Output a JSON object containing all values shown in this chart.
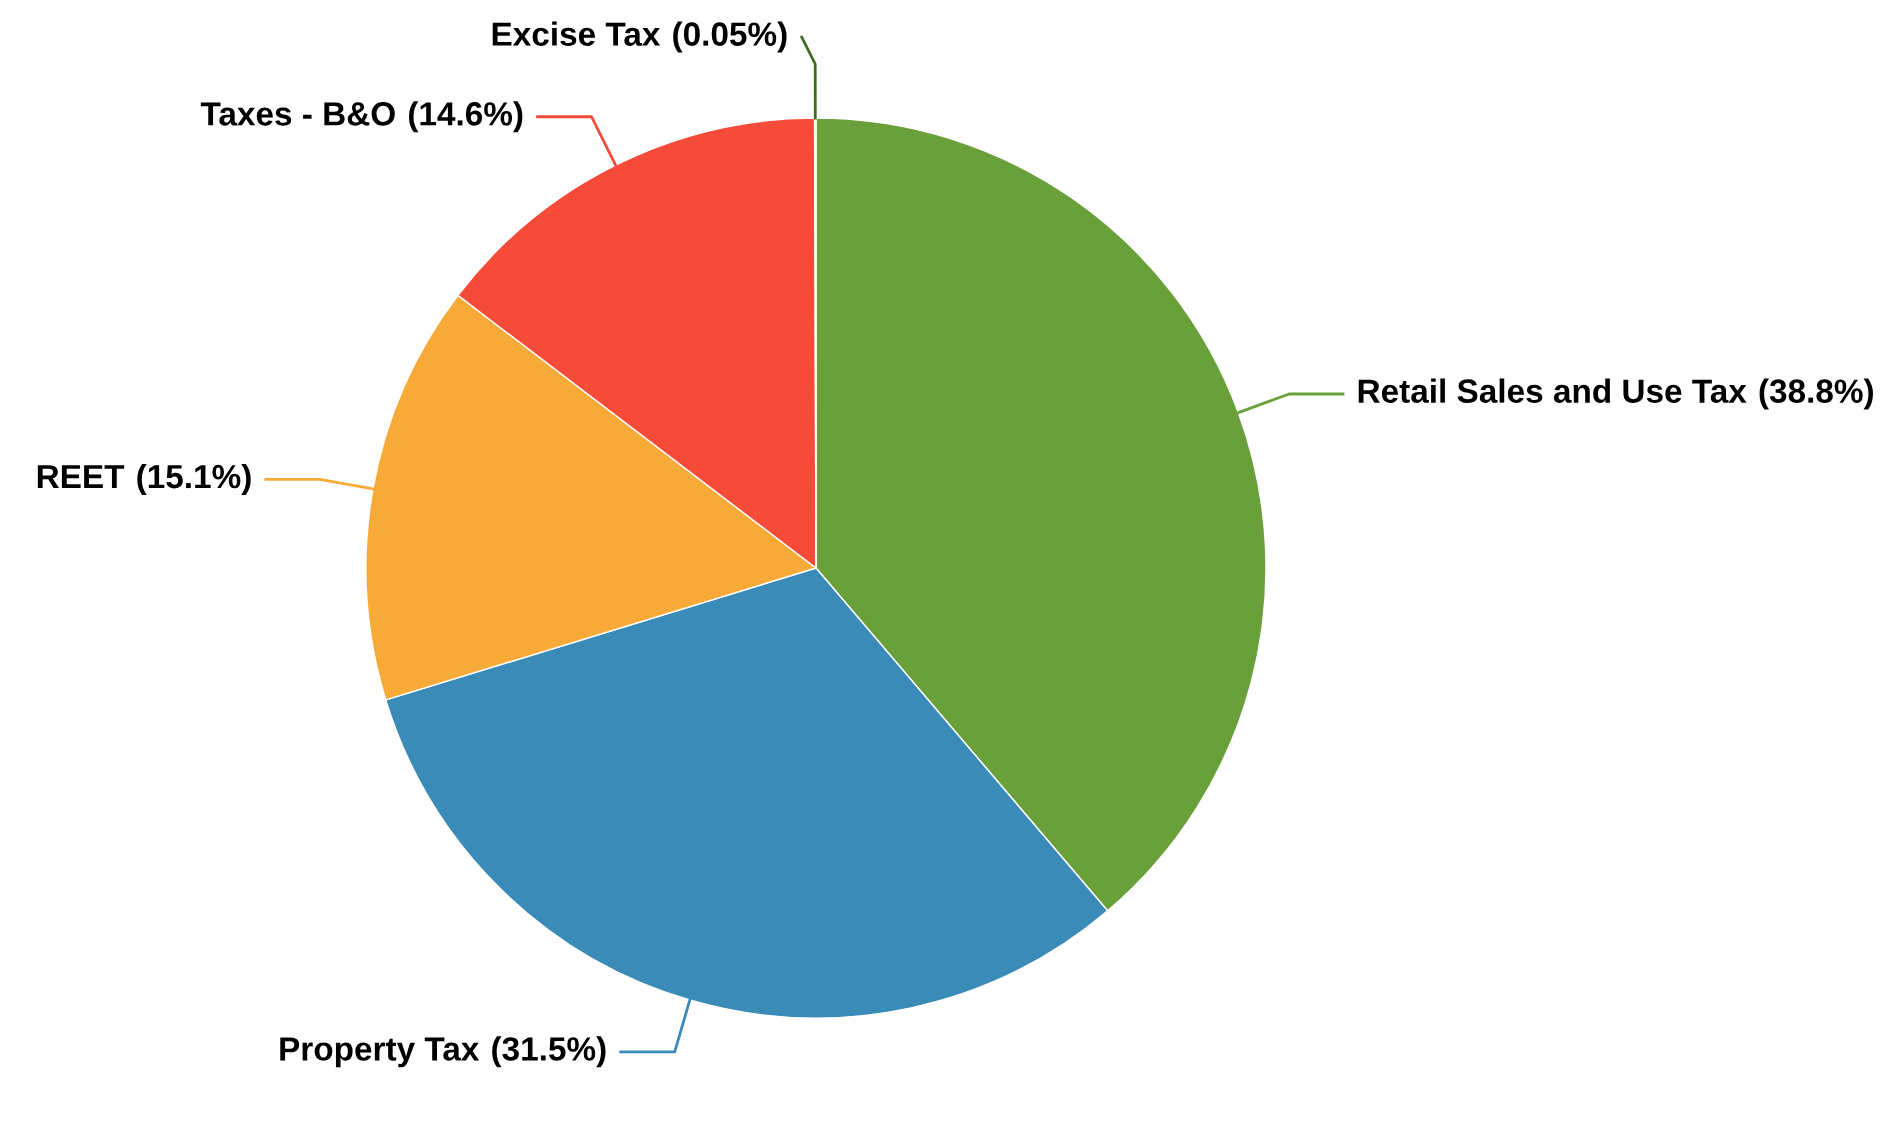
{
  "chart_data": {
    "type": "pie",
    "categories": [
      "Retail Sales and Use Tax",
      "Property Tax",
      "REET",
      "Taxes - B&O",
      "Excise Tax"
    ],
    "values": [
      38.8,
      31.5,
      15.1,
      14.6,
      0.05
    ],
    "colors": [
      "#6aa03a",
      "#3b8bb8",
      "#f7aa38",
      "#f64b38",
      "#3d6b1f"
    ],
    "value_labels": [
      "(38.8%)",
      "(31.5%)",
      "(15.1%)",
      "(14.6%)",
      "(0.05%)"
    ],
    "legend": false
  }
}
